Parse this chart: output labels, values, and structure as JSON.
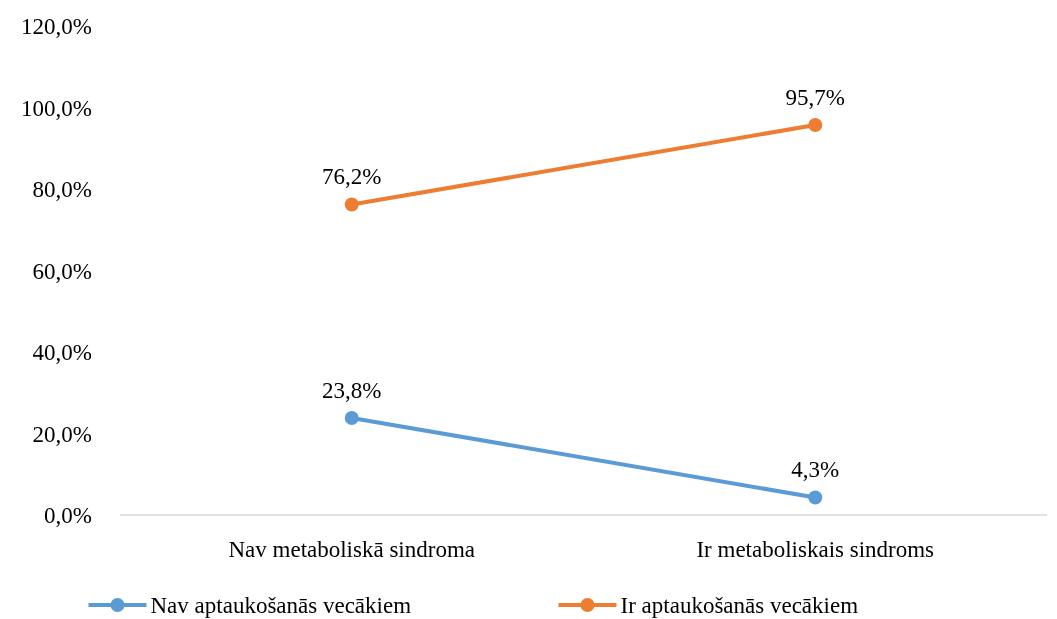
{
  "chart_data": {
    "type": "line",
    "categories": [
      "Nav metaboliskā sindroma",
      "Ir metaboliskais sindroms"
    ],
    "series": [
      {
        "name": "Nav aptaukošanās vecākiem",
        "color": "#5b9bd5",
        "values": [
          23.8,
          4.3
        ],
        "value_labels": [
          "23,8%",
          "4,3%"
        ]
      },
      {
        "name": "Ir aptaukošanās vecākiem",
        "color": "#ed7d31",
        "values": [
          76.2,
          95.7
        ],
        "value_labels": [
          "76,2%",
          "95,7%"
        ]
      }
    ],
    "ylim": [
      0,
      120
    ],
    "yticks": [
      {
        "value": 0,
        "label": "0,0%"
      },
      {
        "value": 20,
        "label": "20,0%"
      },
      {
        "value": 40,
        "label": "40,0%"
      },
      {
        "value": 60,
        "label": "60,0%"
      },
      {
        "value": 80,
        "label": "80,0%"
      },
      {
        "value": 100,
        "label": "100,0%"
      },
      {
        "value": 120,
        "label": "120,0%"
      }
    ],
    "grid": false,
    "legend": "bottom",
    "marker": "circle",
    "line_style": "solid"
  }
}
